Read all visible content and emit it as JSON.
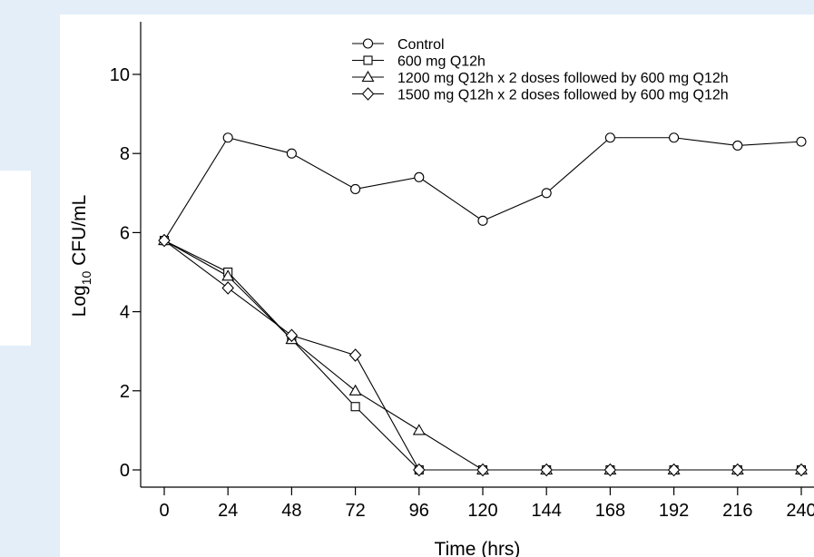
{
  "chart_data": {
    "type": "line",
    "xlabel": "Time (hrs)",
    "ylabel": {
      "prefix": "Log",
      "subscript": "10",
      "suffix": " CFU/mL"
    },
    "xlim": [
      0,
      240
    ],
    "ylim": [
      0,
      11
    ],
    "xticks": [
      0,
      24,
      48,
      72,
      96,
      120,
      144,
      168,
      192,
      216,
      240
    ],
    "yticks": [
      0,
      2,
      4,
      6,
      8,
      10
    ],
    "grid": false,
    "legend_position": "top",
    "x": [
      0,
      24,
      48,
      72,
      96,
      120,
      144,
      168,
      192,
      216,
      240
    ],
    "series": [
      {
        "name": "Control",
        "marker": "circle",
        "values": [
          5.8,
          8.4,
          8.0,
          7.1,
          7.4,
          6.3,
          7.0,
          8.4,
          8.4,
          8.2,
          8.3
        ]
      },
      {
        "name": "600 mg Q12h",
        "marker": "square",
        "values": [
          5.8,
          5.0,
          3.3,
          1.6,
          0,
          0,
          0,
          0,
          0,
          0,
          0
        ]
      },
      {
        "name": "1200 mg Q12h x 2 doses followed by 600 mg Q12h",
        "marker": "triangle",
        "values": [
          5.8,
          4.9,
          3.3,
          2.0,
          1.0,
          0,
          0,
          0,
          0,
          0,
          0
        ]
      },
      {
        "name": "1500 mg Q12h x 2 doses followed by 600 mg Q12h",
        "marker": "diamond",
        "values": [
          5.8,
          4.6,
          3.4,
          2.9,
          0,
          0,
          0,
          0,
          0,
          0,
          0
        ]
      }
    ]
  }
}
